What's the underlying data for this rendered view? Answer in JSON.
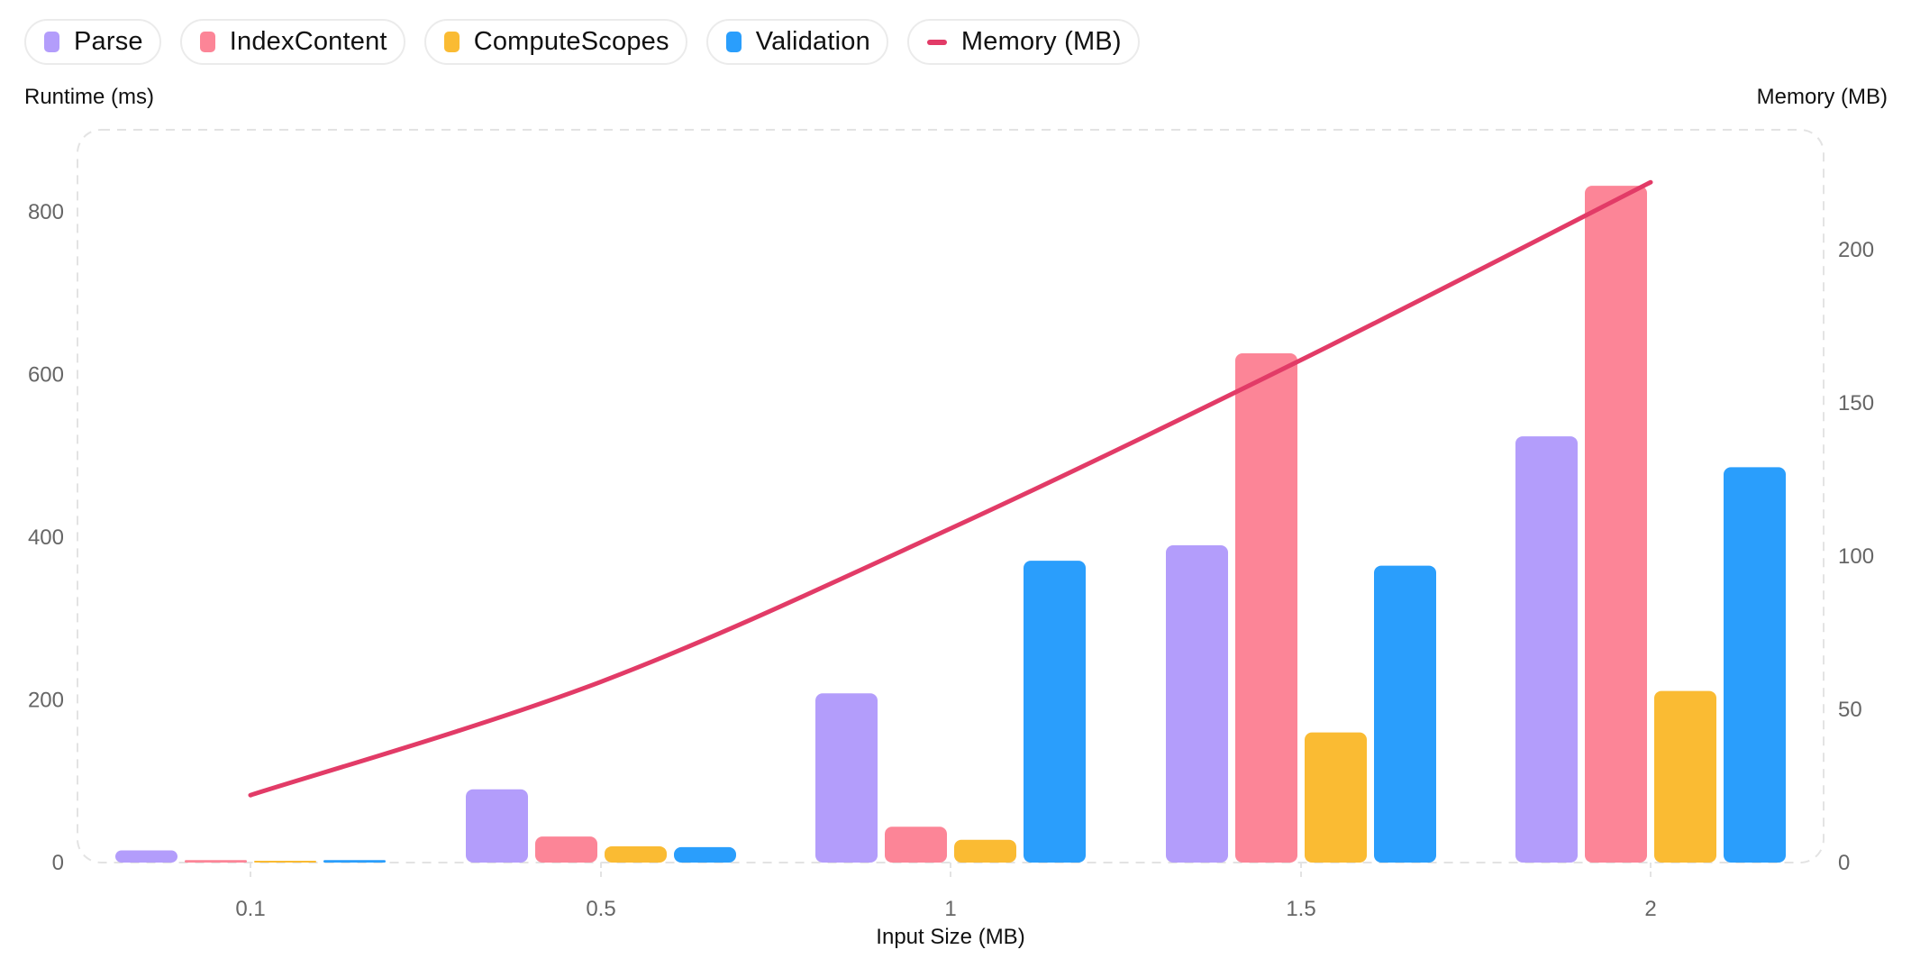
{
  "legend": [
    {
      "label": "Parse",
      "color": "#b39dfb",
      "kind": "bar"
    },
    {
      "label": "IndexContent",
      "color": "#fc8597",
      "kind": "bar"
    },
    {
      "label": "ComputeScopes",
      "color": "#fabb33",
      "kind": "bar"
    },
    {
      "label": "Validation",
      "color": "#2a9efc",
      "kind": "bar"
    },
    {
      "label": "Memory (MB)",
      "color": "#e23b67",
      "kind": "line"
    }
  ],
  "axes": {
    "left_title": "Runtime (ms)",
    "right_title": "Memory (MB)",
    "x_title": "Input Size (MB)"
  },
  "chart_data": {
    "type": "bar",
    "title": "",
    "xlabel": "Input Size (MB)",
    "ylabel": "Runtime (ms)",
    "y2label": "Memory (MB)",
    "categories": [
      "0.1",
      "0.5",
      "1",
      "1.5",
      "2"
    ],
    "series": [
      {
        "name": "Parse",
        "type": "bar",
        "axis": "left",
        "color": "#b39dfb",
        "values": [
          15,
          90,
          208,
          390,
          524
        ]
      },
      {
        "name": "IndexContent",
        "type": "bar",
        "axis": "left",
        "color": "#fc8597",
        "values": [
          3,
          32,
          44,
          626,
          832
        ]
      },
      {
        "name": "ComputeScopes",
        "type": "bar",
        "axis": "left",
        "color": "#fabb33",
        "values": [
          1,
          20,
          28,
          160,
          211
        ]
      },
      {
        "name": "Validation",
        "type": "bar",
        "axis": "left",
        "color": "#2a9efc",
        "values": [
          3,
          19,
          371,
          365,
          486
        ]
      },
      {
        "name": "Memory (MB)",
        "type": "line",
        "axis": "right",
        "color": "#e23b67",
        "values": [
          22,
          59,
          109,
          164,
          222
        ]
      }
    ],
    "ylim": [
      0,
      900
    ],
    "y2lim": [
      0,
      240
    ],
    "yticks": [
      0,
      200,
      400,
      600,
      800
    ],
    "y2ticks": [
      0,
      50,
      100,
      150,
      200
    ],
    "grid": false,
    "legend_position": "top"
  }
}
